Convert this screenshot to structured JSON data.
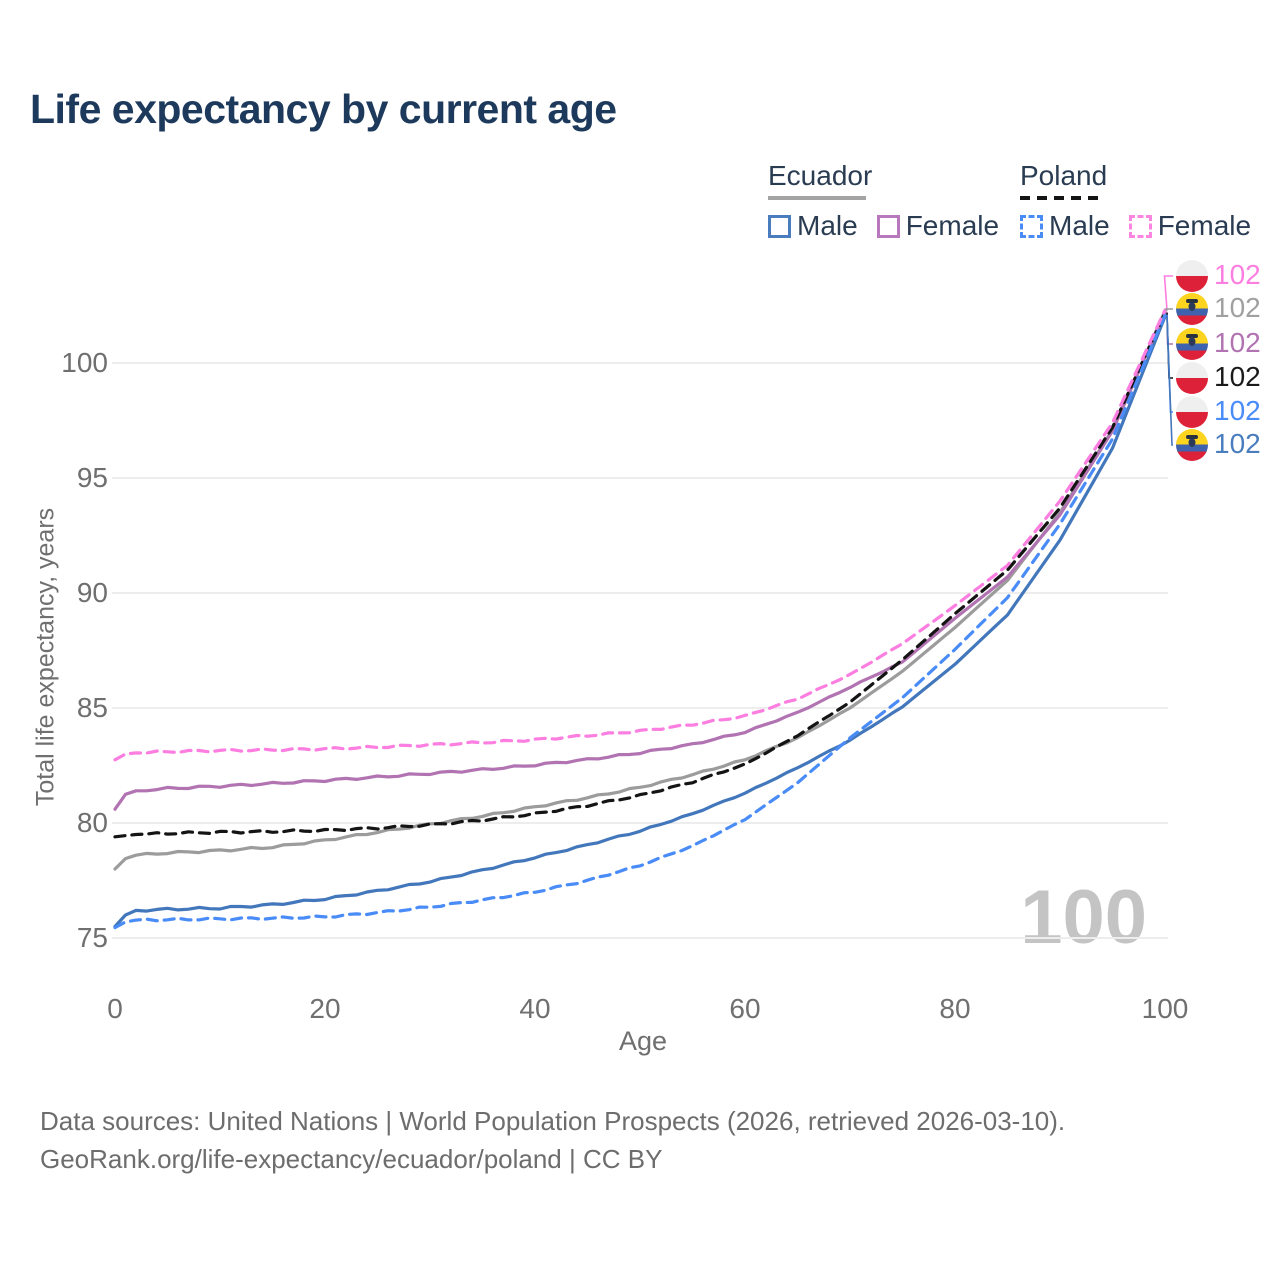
{
  "title": "Life expectancy by current age",
  "legend": {
    "groups": [
      {
        "name": "Ecuador",
        "line_style": "solid",
        "underline_color": "#a3a3a3",
        "items": [
          {
            "label": "Male",
            "color": "#4a7dbd"
          },
          {
            "label": "Female",
            "color": "#b878bc"
          }
        ]
      },
      {
        "name": "Poland",
        "line_style": "dashed",
        "underline_color": "#141414",
        "items": [
          {
            "label": "Male",
            "color": "#4a8cf7"
          },
          {
            "label": "Female",
            "color": "#fc85e2"
          }
        ]
      }
    ]
  },
  "watermark": "100",
  "footer": {
    "line1": "Data sources: United Nations | World Population Prospects (2026, retrieved 2026-03-10).",
    "line2": "GeoRank.org/life-expectancy/ecuador/poland | CC BY"
  },
  "end_labels": [
    {
      "flag": "poland",
      "series": "Poland Female",
      "value": "102",
      "color": "#fb7ee0"
    },
    {
      "flag": "ecuador",
      "series": "Ecuador Both",
      "value": "102",
      "color": "#a0a0a0"
    },
    {
      "flag": "ecuador",
      "series": "Ecuador Female",
      "value": "102",
      "color": "#b173b1"
    },
    {
      "flag": "poland",
      "series": "Poland Both",
      "value": "102",
      "color": "#1a1a1a"
    },
    {
      "flag": "poland",
      "series": "Poland Male",
      "value": "102",
      "color": "#4a8cf7"
    },
    {
      "flag": "ecuador",
      "series": "Ecuador Male",
      "value": "102",
      "color": "#4a7dbd"
    }
  ],
  "chart_data": {
    "type": "line",
    "title": "Life expectancy by current age",
    "xlabel": "Age",
    "ylabel": "Total life expectancy, years",
    "xlim": [
      0,
      100
    ],
    "ylim": [
      75,
      102.5
    ],
    "x_ticks": [
      0,
      20,
      40,
      60,
      80,
      100
    ],
    "y_ticks": [
      75,
      80,
      85,
      90,
      95,
      100
    ],
    "grid": "horizontal",
    "gridline_color": "#ededed",
    "legend_position": "top-right",
    "ages": [
      0,
      1,
      2,
      5,
      10,
      15,
      20,
      25,
      30,
      35,
      40,
      45,
      50,
      55,
      60,
      65,
      70,
      75,
      80,
      85,
      90,
      95,
      100
    ],
    "series": [
      {
        "name": "Poland Female",
        "color": "#fb7ee0",
        "dash": true,
        "values": [
          82.75,
          83.0,
          83.05,
          83.1,
          83.15,
          83.18,
          83.22,
          83.3,
          83.4,
          83.5,
          83.62,
          83.8,
          84.0,
          84.28,
          84.65,
          85.4,
          86.45,
          87.8,
          89.45,
          91.2,
          94.0,
          97.4,
          102.3
        ]
      },
      {
        "name": "Ecuador Both",
        "color": "#9c9c9c",
        "dash": false,
        "values": [
          78.0,
          78.45,
          78.6,
          78.7,
          78.8,
          78.95,
          79.25,
          79.6,
          79.95,
          80.3,
          80.7,
          81.1,
          81.55,
          82.1,
          82.75,
          83.7,
          85.0,
          86.6,
          88.5,
          90.55,
          93.5,
          97.1,
          102.26
        ]
      },
      {
        "name": "Ecuador Female",
        "color": "#b173b1",
        "dash": false,
        "values": [
          80.6,
          81.25,
          81.4,
          81.5,
          81.6,
          81.72,
          81.85,
          82.0,
          82.15,
          82.32,
          82.52,
          82.76,
          83.05,
          83.42,
          83.95,
          84.8,
          85.9,
          87.0,
          88.9,
          90.7,
          93.4,
          97.05,
          102.22
        ]
      },
      {
        "name": "Poland Both",
        "color": "#141414",
        "dash": true,
        "values": [
          79.4,
          79.45,
          79.5,
          79.55,
          79.6,
          79.63,
          79.68,
          79.78,
          79.92,
          80.12,
          80.4,
          80.76,
          81.2,
          81.78,
          82.55,
          83.8,
          85.25,
          87.1,
          89.1,
          91.0,
          93.7,
          97.2,
          102.18
        ]
      },
      {
        "name": "Poland Male",
        "color": "#4a8cf7",
        "dash": true,
        "values": [
          75.45,
          75.7,
          75.78,
          75.8,
          75.83,
          75.86,
          75.92,
          76.1,
          76.35,
          76.65,
          77.0,
          77.5,
          78.15,
          79.0,
          80.15,
          81.75,
          83.7,
          85.45,
          87.55,
          89.8,
          93.0,
          96.7,
          102.1
        ]
      },
      {
        "name": "Ecuador Male",
        "color": "#4377bc",
        "dash": false,
        "values": [
          75.5,
          76.0,
          76.2,
          76.25,
          76.3,
          76.45,
          76.7,
          77.05,
          77.45,
          77.95,
          78.5,
          79.05,
          79.65,
          80.4,
          81.3,
          82.4,
          83.6,
          85.05,
          86.9,
          89.05,
          92.3,
          96.3,
          102.02
        ]
      }
    ]
  }
}
